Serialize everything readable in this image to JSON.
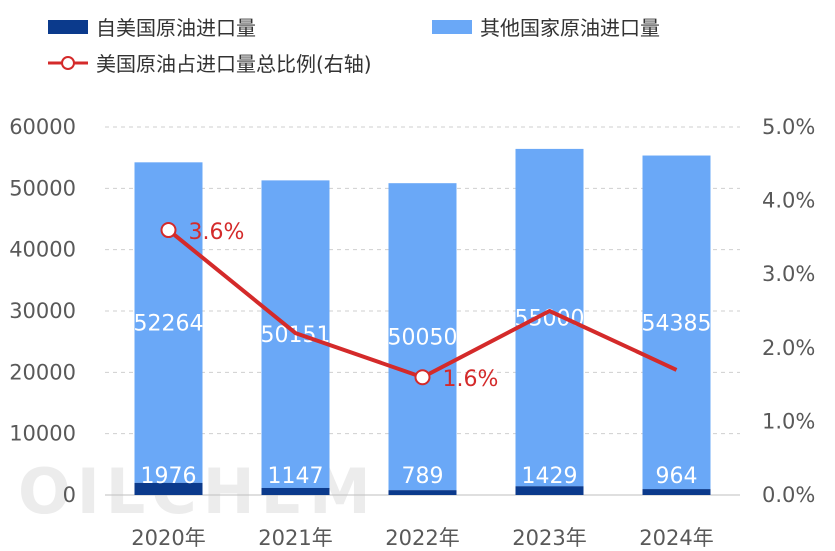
{
  "legend": {
    "us_import": "自美国原油进口量",
    "other_import": "其他国家原油进口量",
    "us_share": "美国原油占进口量总比例(右轴)"
  },
  "watermark": "OILCHEM",
  "colors": {
    "us_bar": "#0b3a8c",
    "other_bar": "#6aa8f7",
    "line": "#d42a2a",
    "grid": "#cfcfcf",
    "axis_text": "#595959"
  },
  "chart_data": {
    "type": "bar",
    "stacked": true,
    "categories": [
      "2020年",
      "2021年",
      "2022年",
      "2023年",
      "2024年"
    ],
    "series": [
      {
        "name": "自美国原油进口量",
        "values": [
          1976,
          1147,
          789,
          1429,
          964
        ]
      },
      {
        "name": "其他国家原油进口量",
        "values": [
          52264,
          50151,
          50050,
          55000,
          54385
        ]
      }
    ],
    "line_series": {
      "name": "美国原油占进口量总比例(右轴)",
      "axis": "right",
      "values": [
        3.6,
        2.2,
        1.6,
        2.5,
        1.7
      ],
      "labels": [
        "3.6%",
        "",
        "1.6%",
        "",
        ""
      ]
    },
    "ylim": [
      0,
      60000
    ],
    "yticks": [
      "0",
      "10000",
      "20000",
      "30000",
      "40000",
      "50000",
      "60000"
    ],
    "y2lim": [
      0,
      5
    ],
    "y2ticks": [
      "0.0%",
      "1.0%",
      "2.0%",
      "3.0%",
      "4.0%",
      "5.0%"
    ],
    "grid": true,
    "legend_position": "top"
  }
}
